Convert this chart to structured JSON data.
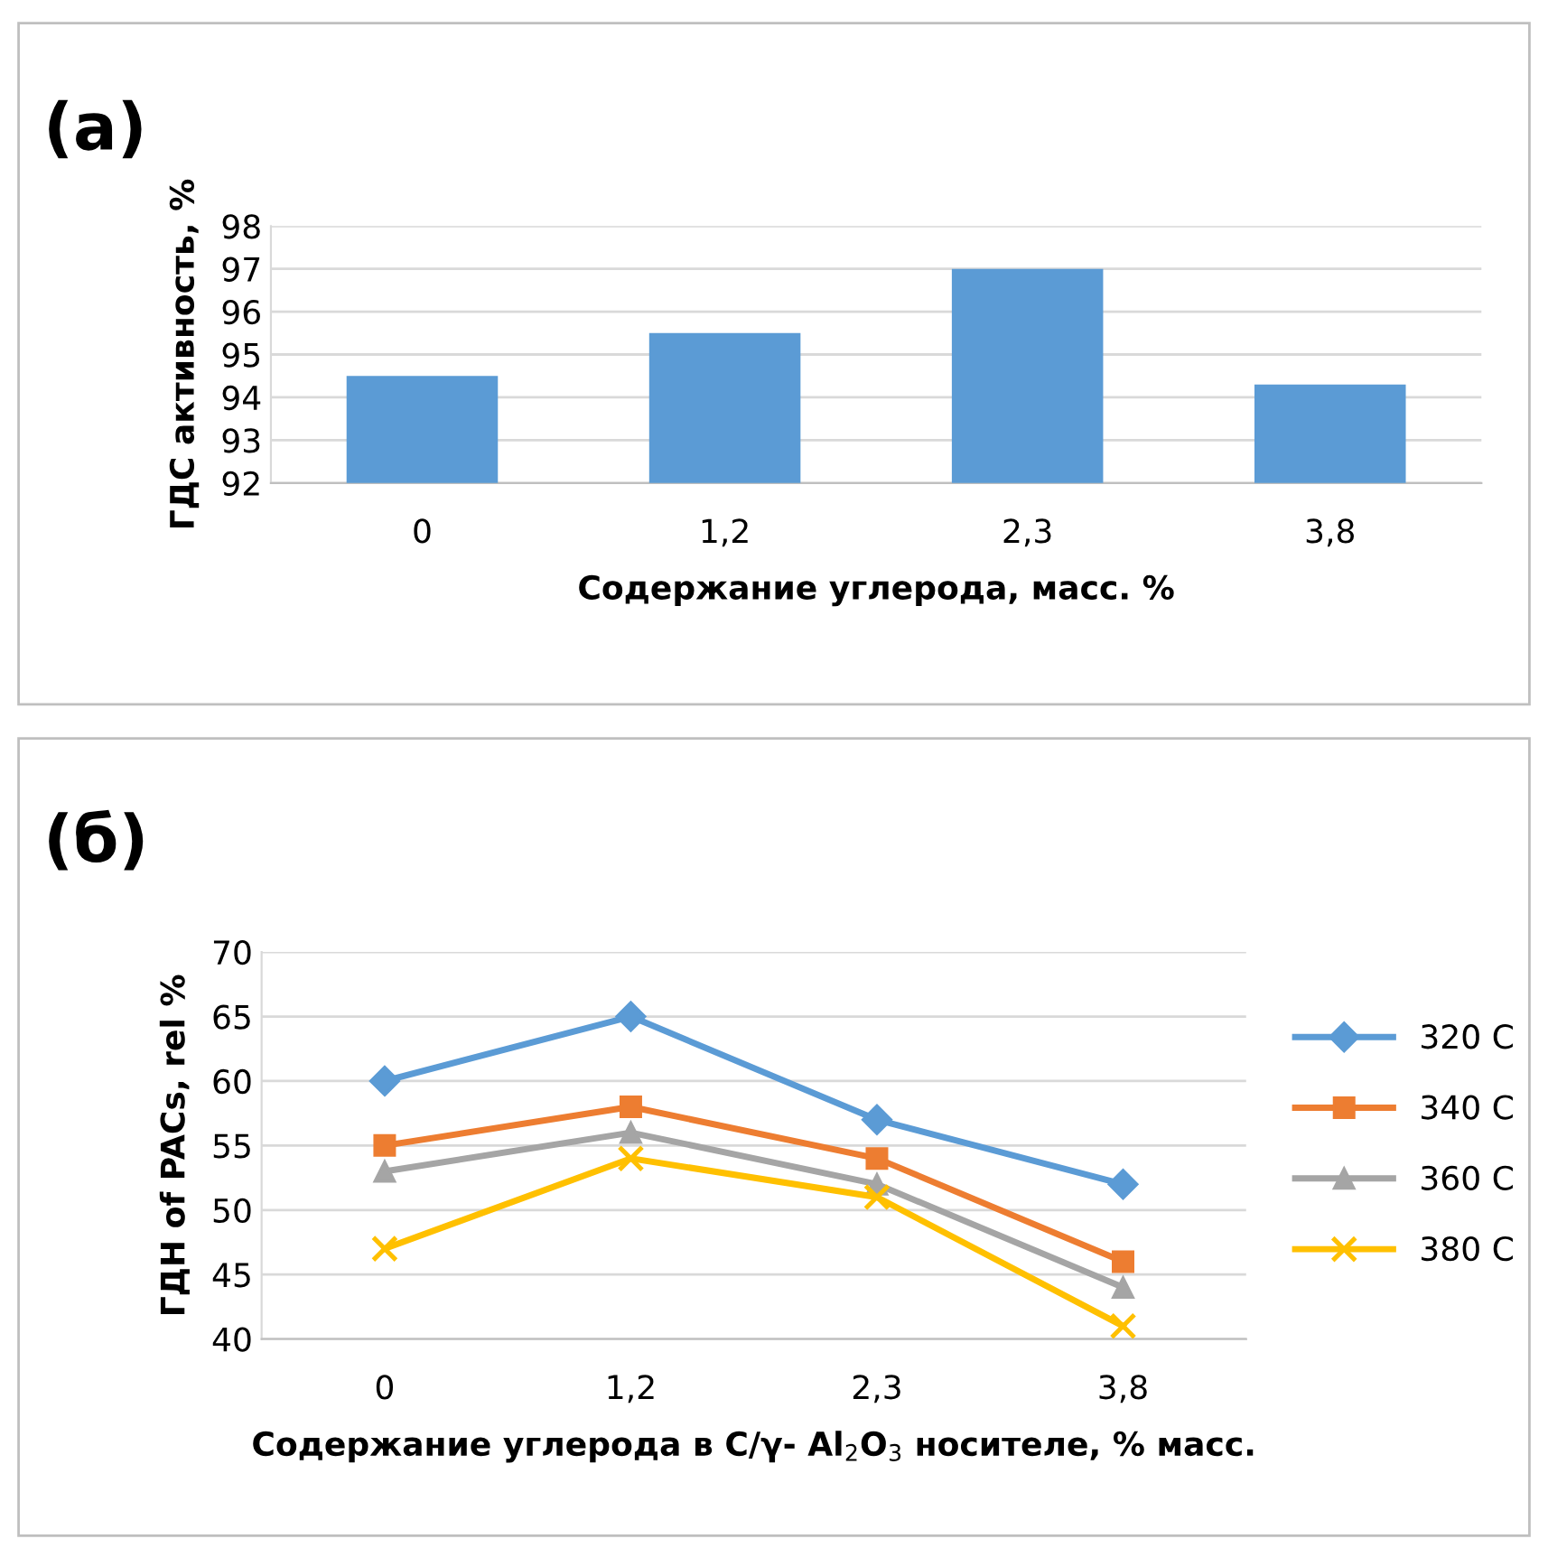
{
  "chart_data": [
    {
      "type": "bar",
      "title": "(a)",
      "categories": [
        "0",
        "1,2",
        "2,3",
        "3,8"
      ],
      "values": [
        94.5,
        95.5,
        97,
        94.3
      ],
      "color": "#5b9bd5",
      "ylim": [
        92,
        98
      ],
      "yticks": [
        92,
        93,
        94,
        95,
        96,
        97,
        98
      ],
      "grid": "y",
      "xlabel": "Содержание углерода, масс. %",
      "ylabel": "ГДС активность, %",
      "legend": false
    },
    {
      "type": "line",
      "title": "(б)",
      "categories": [
        "0",
        "1,2",
        "2,3",
        "3,8"
      ],
      "series": [
        {
          "name": "320 C",
          "color": "#5b9bd5",
          "marker": "diamond",
          "values": [
            60,
            65,
            57,
            52
          ]
        },
        {
          "name": "340 C",
          "color": "#ed7d31",
          "marker": "square",
          "values": [
            55,
            58,
            54,
            46
          ]
        },
        {
          "name": "360 C",
          "color": "#a5a5a5",
          "marker": "triangle",
          "values": [
            53,
            56,
            52,
            44
          ]
        },
        {
          "name": "380 C",
          "color": "#ffc000",
          "marker": "cross",
          "values": [
            47,
            54,
            51,
            41
          ]
        }
      ],
      "ylim": [
        40,
        70
      ],
      "yticks": [
        40,
        45,
        50,
        55,
        60,
        65,
        70
      ],
      "grid": "y",
      "legend": "right",
      "line_style": "solid",
      "xlabel": "Содержание углерода в C/γ- Al$_{2}$O$_{3}$ носителе, % масс.",
      "ylabel": "ГДН of PACs, rel %"
    }
  ]
}
